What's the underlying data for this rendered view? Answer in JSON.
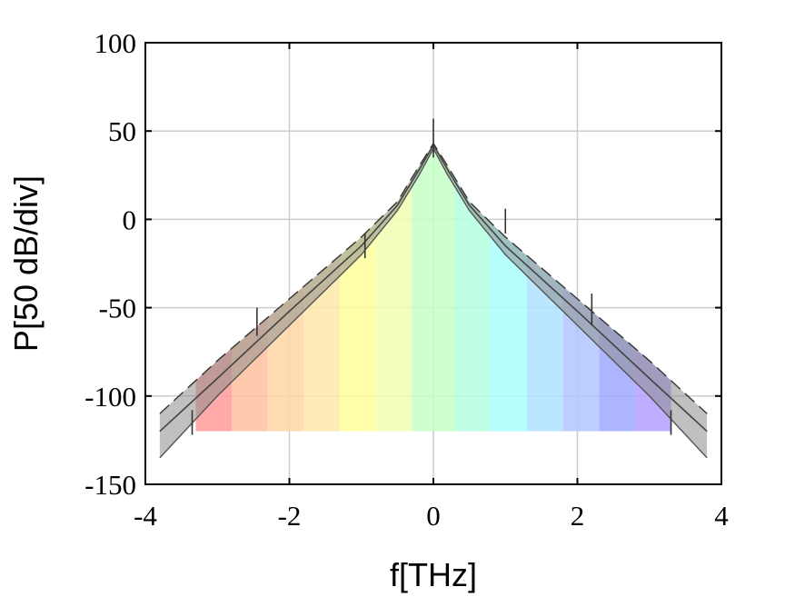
{
  "chart_data": {
    "type": "area",
    "title": "",
    "xlabel": "f[THz]",
    "ylabel": "P[50 dB/div]",
    "xlim": [
      -4,
      4
    ],
    "ylim": [
      -150,
      100
    ],
    "xticks": [
      -4,
      -2,
      0,
      2,
      4
    ],
    "yticks": [
      100,
      50,
      0,
      -50,
      -100,
      -150
    ],
    "xtick_labels": [
      "-4",
      "-2",
      "0",
      "2",
      "4"
    ],
    "ytick_labels": [
      "100",
      "50",
      "0",
      "-50",
      "-100",
      "-150"
    ],
    "grid": true,
    "legend": "none",
    "colored_bands": {
      "y_bottom": -120,
      "x_edges": [
        -3.3,
        -2.8,
        -2.3,
        -1.8,
        -1.3,
        -0.8,
        -0.3,
        0.3,
        0.8,
        1.3,
        1.8,
        2.3,
        2.8,
        3.3
      ],
      "colors": [
        "#ff9a9a",
        "#ffbfa0",
        "#ffd6a6",
        "#ffe8a8",
        "#ffff9c",
        "#f0ffb0",
        "#c6ffc6",
        "#b4ffe0",
        "#a8ffff",
        "#aee2ff",
        "#b0c6ff",
        "#a0a8ff",
        "#b4a0ff"
      ]
    },
    "series": [
      {
        "role": "upper-envelope",
        "style": "dashed",
        "color": "#333333",
        "x": [
          -3.8,
          -3.0,
          -2.0,
          -1.0,
          -0.5,
          -0.2,
          0.0,
          0.2,
          0.5,
          1.0,
          2.0,
          3.0,
          3.8
        ],
        "y": [
          -110,
          -80,
          -45,
          -10,
          10,
          30,
          43,
          30,
          10,
          -10,
          -45,
          -80,
          -110
        ]
      },
      {
        "role": "lower-envelope",
        "style": "solid",
        "color": "#555555",
        "x": [
          -3.8,
          -3.0,
          -2.0,
          -1.0,
          -0.5,
          -0.2,
          0.0,
          0.2,
          0.5,
          1.0,
          2.0,
          3.0,
          3.8
        ],
        "y": [
          -135,
          -100,
          -60,
          -20,
          5,
          25,
          40,
          25,
          5,
          -20,
          -60,
          -100,
          -135
        ]
      },
      {
        "role": "mean-spectrum",
        "style": "solid",
        "color": "#444444",
        "x": [
          -3.8,
          -3.0,
          -2.0,
          -1.0,
          -0.5,
          -0.2,
          0.0,
          0.2,
          0.5,
          1.0,
          2.0,
          3.0,
          3.8
        ],
        "y": [
          -120,
          -90,
          -52,
          -15,
          8,
          28,
          42,
          28,
          8,
          -15,
          -52,
          -90,
          -120
        ]
      }
    ],
    "spikes": [
      {
        "x": 0.0,
        "y_top": 57,
        "y_bottom": 35
      },
      {
        "x": -2.45,
        "y_top": -50,
        "y_bottom": -66
      },
      {
        "x": -0.95,
        "y_top": -8,
        "y_bottom": -22
      },
      {
        "x": 2.2,
        "y_top": -42,
        "y_bottom": -60
      },
      {
        "x": 1.0,
        "y_top": 6,
        "y_bottom": -8
      },
      {
        "x": -3.35,
        "y_top": -108,
        "y_bottom": -122
      },
      {
        "x": 3.3,
        "y_top": -108,
        "y_bottom": -122
      }
    ]
  }
}
